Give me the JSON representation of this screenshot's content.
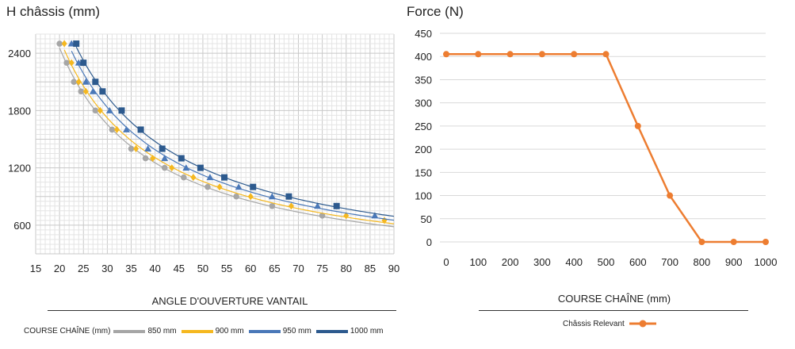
{
  "chart_data": [
    {
      "type": "line",
      "title": "H châssis (mm)",
      "xlabel": "ANGLE D'OUVERTURE VANTAIL",
      "ylabel": "H châssis (mm)",
      "xlim": [
        15,
        90
      ],
      "ylim": [
        300,
        2600
      ],
      "x_ticks": [
        15,
        20,
        25,
        30,
        35,
        40,
        45,
        50,
        55,
        60,
        65,
        70,
        75,
        80,
        85,
        90
      ],
      "y_ticks": [
        600,
        1200,
        1800,
        2400
      ],
      "grid": true,
      "legend_title": "COURSE CHAÎNE (mm)",
      "legend_position": "bottom",
      "series": [
        {
          "name": "850 mm",
          "color": "#a6a6a6",
          "marker": "circle",
          "points": [
            [
              20,
              2500
            ],
            [
              21.5,
              2300
            ],
            [
              23,
              2100
            ],
            [
              24.5,
              2000
            ],
            [
              27.5,
              1800
            ],
            [
              31,
              1600
            ],
            [
              35,
              1400
            ],
            [
              38,
              1300
            ],
            [
              42,
              1200
            ],
            [
              46,
              1100
            ],
            [
              51,
              1000
            ],
            [
              57,
              900
            ],
            [
              64.5,
              800
            ],
            [
              75,
              700
            ]
          ]
        },
        {
          "name": "900 mm",
          "color": "#f5b820",
          "marker": "diamond",
          "points": [
            [
              21,
              2500
            ],
            [
              22.5,
              2300
            ],
            [
              24,
              2100
            ],
            [
              25.5,
              2000
            ],
            [
              28.5,
              1800
            ],
            [
              32,
              1600
            ],
            [
              36,
              1400
            ],
            [
              39.5,
              1300
            ],
            [
              43.5,
              1200
            ],
            [
              48,
              1100
            ],
            [
              53.5,
              1000
            ],
            [
              60,
              900
            ],
            [
              68.5,
              800
            ],
            [
              80,
              700
            ],
            [
              88,
              650
            ]
          ]
        },
        {
          "name": "950 mm",
          "color": "#4a78b8",
          "marker": "triangle",
          "points": [
            [
              22.5,
              2500
            ],
            [
              24,
              2300
            ],
            [
              25.5,
              2100
            ],
            [
              27,
              2000
            ],
            [
              30.5,
              1800
            ],
            [
              34,
              1600
            ],
            [
              38.5,
              1400
            ],
            [
              42,
              1300
            ],
            [
              46.5,
              1200
            ],
            [
              51.5,
              1100
            ],
            [
              57.5,
              1000
            ],
            [
              64.5,
              900
            ],
            [
              74,
              800
            ],
            [
              86,
              700
            ]
          ]
        },
        {
          "name": "1000 mm",
          "color": "#2d5a8e",
          "marker": "square",
          "points": [
            [
              23.5,
              2500
            ],
            [
              25,
              2300
            ],
            [
              27.5,
              2100
            ],
            [
              29,
              2000
            ],
            [
              33,
              1800
            ],
            [
              37,
              1600
            ],
            [
              41.5,
              1400
            ],
            [
              45.5,
              1300
            ],
            [
              49.5,
              1200
            ],
            [
              54.5,
              1100
            ],
            [
              60.5,
              1000
            ],
            [
              68,
              900
            ],
            [
              78,
              800
            ]
          ]
        }
      ]
    },
    {
      "type": "line",
      "title": "Force (N)",
      "xlabel": "COURSE CHAÎNE (mm)",
      "ylabel": "Force (N)",
      "xlim": [
        0,
        1000
      ],
      "ylim": [
        0,
        450
      ],
      "x_ticks": [
        0,
        100,
        200,
        300,
        400,
        500,
        600,
        700,
        800,
        900,
        1000
      ],
      "y_ticks": [
        0,
        50,
        100,
        150,
        200,
        250,
        300,
        350,
        400,
        450
      ],
      "grid": true,
      "legend_position": "bottom",
      "series": [
        {
          "name": "Châssis Relevant",
          "color": "#ed7d31",
          "marker": "circle",
          "points": [
            [
              0,
              405
            ],
            [
              100,
              405
            ],
            [
              200,
              405
            ],
            [
              300,
              405
            ],
            [
              400,
              405
            ],
            [
              500,
              405
            ],
            [
              600,
              250
            ],
            [
              700,
              100
            ],
            [
              800,
              0
            ],
            [
              900,
              0
            ],
            [
              1000,
              0
            ]
          ]
        }
      ]
    }
  ]
}
